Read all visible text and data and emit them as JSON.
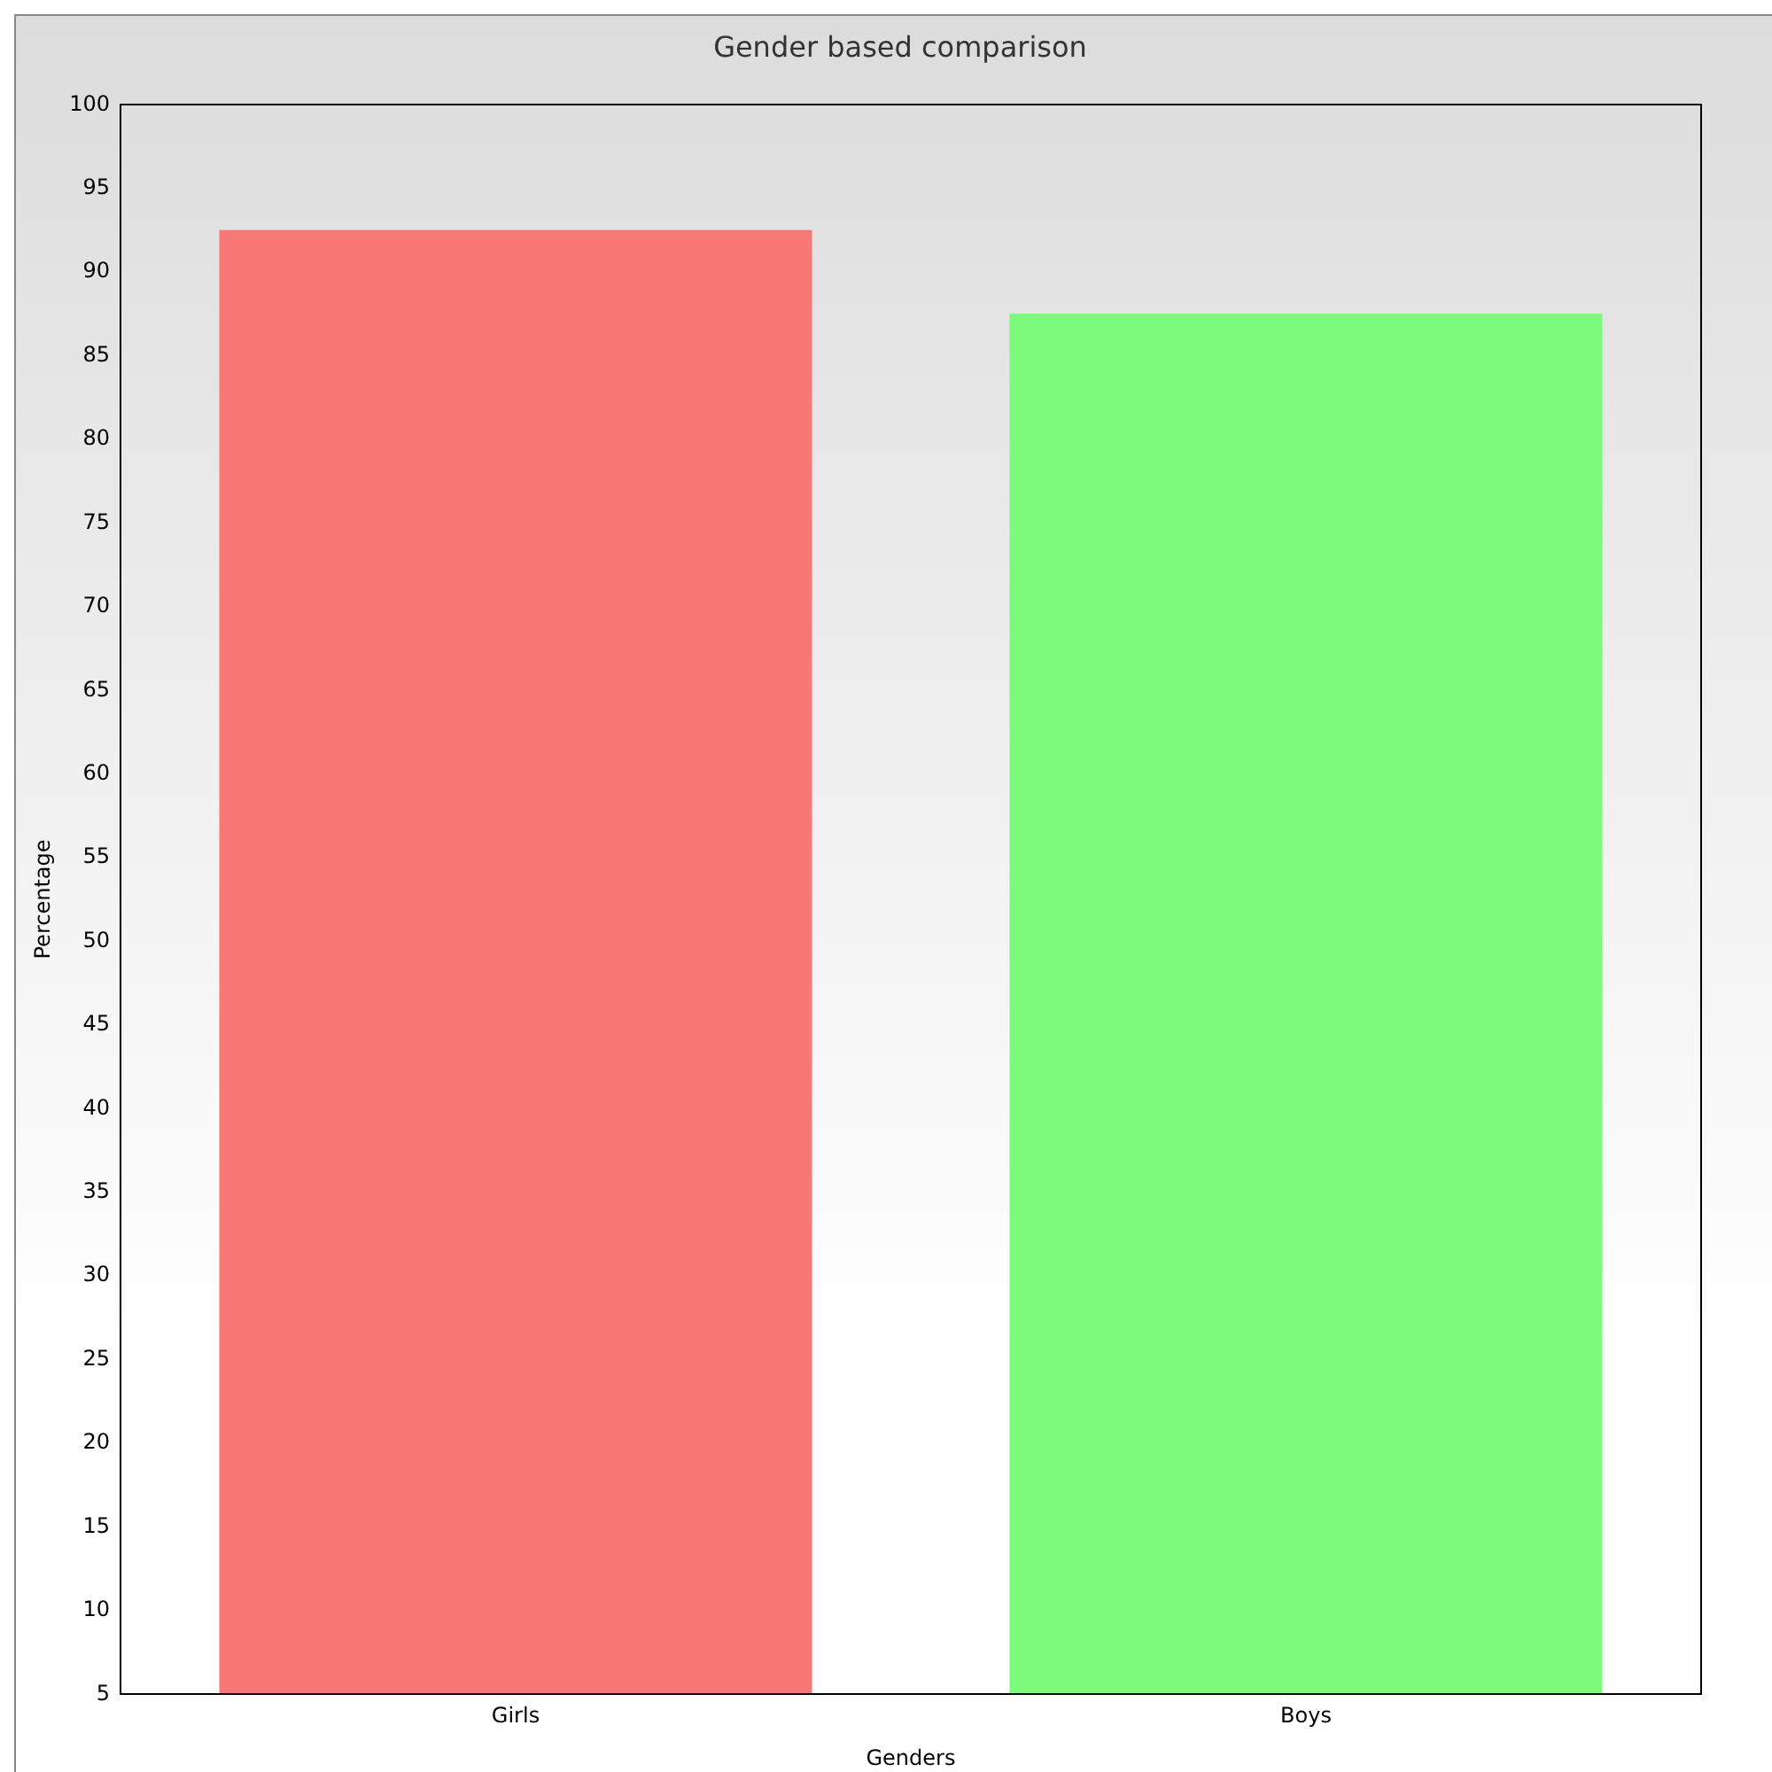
{
  "chart_data": {
    "type": "bar",
    "title": "Gender based comparison",
    "xlabel": "Genders",
    "ylabel": "Percentage",
    "categories": [
      "Girls",
      "Boys"
    ],
    "values": [
      92.5,
      87.5
    ],
    "colors": [
      "#f87878",
      "#7cfa7c"
    ],
    "ylim": [
      5,
      100
    ],
    "yticks": [
      5,
      10,
      15,
      20,
      25,
      30,
      35,
      40,
      45,
      50,
      55,
      60,
      65,
      70,
      75,
      80,
      85,
      90,
      95,
      100
    ],
    "grid": false
  }
}
